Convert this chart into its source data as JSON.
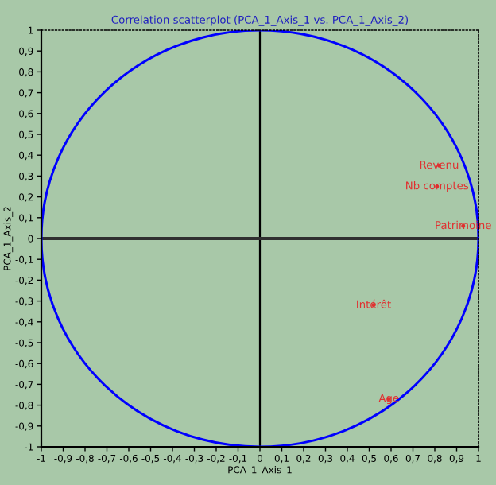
{
  "chart_data": {
    "type": "scatter",
    "title": "Correlation scatterplot (PCA_1_Axis_1 vs. PCA_1_Axis_2)",
    "xlabel": "PCA_1_Axis_1",
    "ylabel": "PCA_1_Axis_2",
    "xlim": [
      -1,
      1
    ],
    "ylim": [
      -1,
      1
    ],
    "xticks": [
      -1,
      {
        "value": -0.9,
        "label": "-0,9"
      },
      {
        "value": -0.8,
        "label": "-0,8"
      },
      {
        "value": -0.7,
        "label": "-0,7"
      },
      {
        "value": -0.6,
        "label": "-0,6"
      },
      {
        "value": -0.5,
        "label": "-0,5"
      },
      {
        "value": -0.4,
        "label": "-0,4"
      },
      {
        "value": -0.3,
        "label": "-0,3"
      },
      {
        "value": -0.2,
        "label": "-0,2"
      },
      {
        "value": -0.1,
        "label": "-0,1"
      },
      0,
      {
        "value": 0.1,
        "label": "0,1"
      },
      {
        "value": 0.2,
        "label": "0,2"
      },
      {
        "value": 0.3,
        "label": "0,3"
      },
      {
        "value": 0.4,
        "label": "0,4"
      },
      {
        "value": 0.5,
        "label": "0,5"
      },
      {
        "value": 0.6,
        "label": "0,6"
      },
      {
        "value": 0.7,
        "label": "0,7"
      },
      {
        "value": 0.8,
        "label": "0,8"
      },
      {
        "value": 0.9,
        "label": "0,9"
      },
      1
    ],
    "yticks": [
      -1,
      {
        "value": -0.9,
        "label": "-0,9"
      },
      {
        "value": -0.8,
        "label": "-0,8"
      },
      {
        "value": -0.7,
        "label": "-0,7"
      },
      {
        "value": -0.6,
        "label": "-0,6"
      },
      {
        "value": -0.5,
        "label": "-0,5"
      },
      {
        "value": -0.4,
        "label": "-0,4"
      },
      {
        "value": -0.3,
        "label": "-0,3"
      },
      {
        "value": -0.2,
        "label": "-0,2"
      },
      {
        "value": -0.1,
        "label": "-0,1"
      },
      0,
      {
        "value": 0.1,
        "label": "0,1"
      },
      {
        "value": 0.2,
        "label": "0,2"
      },
      {
        "value": 0.3,
        "label": "0,3"
      },
      {
        "value": 0.4,
        "label": "0,4"
      },
      {
        "value": 0.5,
        "label": "0,5"
      },
      {
        "value": 0.6,
        "label": "0,6"
      },
      {
        "value": 0.7,
        "label": "0,7"
      },
      {
        "value": 0.8,
        "label": "0,8"
      },
      {
        "value": 0.9,
        "label": "0,9"
      },
      1
    ],
    "grid": false,
    "legend": false,
    "marker": "circle",
    "ref_lines": [
      {
        "axis": "x",
        "value": 0,
        "color": "#000000"
      },
      {
        "axis": "y",
        "value": 0,
        "color": "#303030"
      }
    ],
    "series": [
      {
        "name": "Revenu",
        "color": "#e03030",
        "x": [
          0.82
        ],
        "values": [
          0.35
        ]
      },
      {
        "name": "Nb comptes",
        "color": "#e03030",
        "x": [
          0.81
        ],
        "values": [
          0.25
        ]
      },
      {
        "name": "Patrimoine",
        "color": "#e03030",
        "x": [
          0.93
        ],
        "values": [
          0.06
        ]
      },
      {
        "name": "Intérêt",
        "color": "#e03030",
        "x": [
          0.52
        ],
        "values": [
          -0.32
        ]
      },
      {
        "name": "Age",
        "color": "#e03030",
        "x": [
          0.59
        ],
        "values": [
          -0.77
        ]
      }
    ]
  }
}
